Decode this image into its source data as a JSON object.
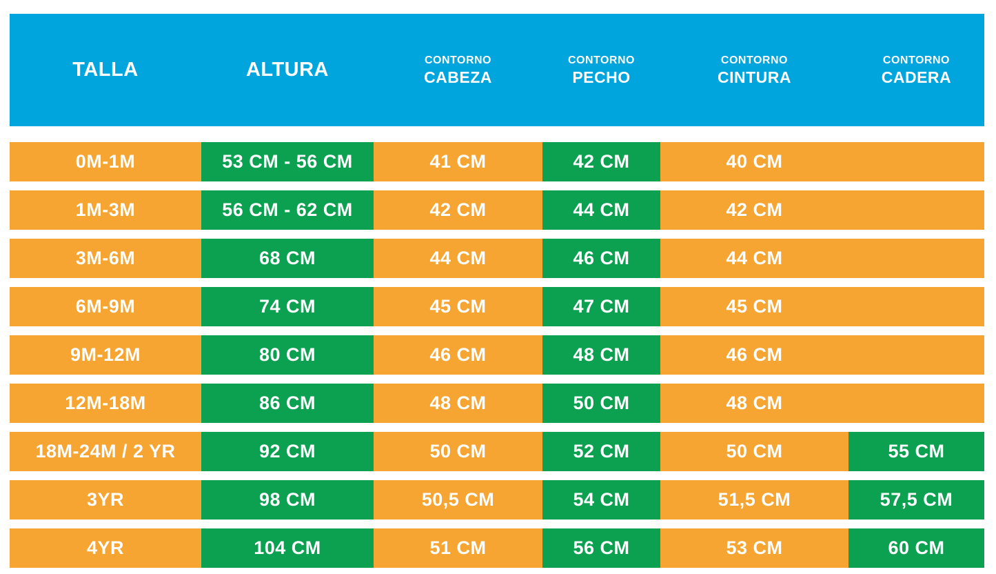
{
  "colors": {
    "header_bg": "#00A5DE",
    "cell_bg": "#F6A432",
    "highlight_bg": "#0CA151",
    "text": "#FFFFFF",
    "page_bg": "#FFFFFF"
  },
  "table": {
    "columns": [
      {
        "top": "",
        "main": "TALLA"
      },
      {
        "top": "",
        "main": "ALTURA"
      },
      {
        "top": "CONTORNO",
        "main": "CABEZA"
      },
      {
        "top": "CONTORNO",
        "main": "PECHO"
      },
      {
        "top": "CONTORNO",
        "main": "CINTURA"
      },
      {
        "top": "CONTORNO",
        "main": "CADERA"
      }
    ],
    "rows": [
      {
        "cells": [
          {
            "text": "0M-1M",
            "green": false
          },
          {
            "text": "53 CM - 56 CM",
            "green": true
          },
          {
            "text": "41 CM",
            "green": false
          },
          {
            "text": "42 CM",
            "green": true
          },
          {
            "text": "40 CM",
            "green": false
          },
          {
            "text": "",
            "green": false
          }
        ]
      },
      {
        "cells": [
          {
            "text": "1M-3M",
            "green": false
          },
          {
            "text": "56 CM - 62 CM",
            "green": true
          },
          {
            "text": "42 CM",
            "green": false
          },
          {
            "text": "44 CM",
            "green": true
          },
          {
            "text": "42 CM",
            "green": false
          },
          {
            "text": "",
            "green": false
          }
        ]
      },
      {
        "cells": [
          {
            "text": "3M-6M",
            "green": false
          },
          {
            "text": "68 CM",
            "green": true
          },
          {
            "text": "44 CM",
            "green": false
          },
          {
            "text": "46 CM",
            "green": true
          },
          {
            "text": "44 CM",
            "green": false
          },
          {
            "text": "",
            "green": false
          }
        ]
      },
      {
        "cells": [
          {
            "text": "6M-9M",
            "green": false
          },
          {
            "text": "74 CM",
            "green": true
          },
          {
            "text": "45 CM",
            "green": false
          },
          {
            "text": "47 CM",
            "green": true
          },
          {
            "text": "45 CM",
            "green": false
          },
          {
            "text": "",
            "green": false
          }
        ]
      },
      {
        "cells": [
          {
            "text": "9M-12M",
            "green": false
          },
          {
            "text": "80 CM",
            "green": true
          },
          {
            "text": "46 CM",
            "green": false
          },
          {
            "text": "48 CM",
            "green": true
          },
          {
            "text": "46 CM",
            "green": false
          },
          {
            "text": "",
            "green": false
          }
        ]
      },
      {
        "cells": [
          {
            "text": "12M-18M",
            "green": false
          },
          {
            "text": "86 CM",
            "green": true
          },
          {
            "text": "48 CM",
            "green": false
          },
          {
            "text": "50 CM",
            "green": true
          },
          {
            "text": "48 CM",
            "green": false
          },
          {
            "text": "",
            "green": false
          }
        ]
      },
      {
        "cells": [
          {
            "text": "18M-24M / 2 YR",
            "green": false
          },
          {
            "text": "92 CM",
            "green": true
          },
          {
            "text": "50 CM",
            "green": false
          },
          {
            "text": "52 CM",
            "green": true
          },
          {
            "text": "50 CM",
            "green": false
          },
          {
            "text": "55 CM",
            "green": true
          }
        ]
      },
      {
        "cells": [
          {
            "text": "3YR",
            "green": false
          },
          {
            "text": "98 CM",
            "green": true
          },
          {
            "text": "50,5 CM",
            "green": false
          },
          {
            "text": "54 CM",
            "green": true
          },
          {
            "text": "51,5 CM",
            "green": false
          },
          {
            "text": "57,5 CM",
            "green": true
          }
        ]
      },
      {
        "cells": [
          {
            "text": "4YR",
            "green": false
          },
          {
            "text": "104 CM",
            "green": true
          },
          {
            "text": "51 CM",
            "green": false
          },
          {
            "text": "56 CM",
            "green": true
          },
          {
            "text": "53 CM",
            "green": false
          },
          {
            "text": "60 CM",
            "green": true
          }
        ]
      }
    ]
  },
  "chart_data": {
    "type": "table",
    "title": "",
    "columns": [
      "TALLA",
      "ALTURA",
      "CONTORNO CABEZA",
      "CONTORNO PECHO",
      "CONTORNO CINTURA",
      "CONTORNO CADERA"
    ],
    "rows": [
      [
        "0M-1M",
        "53 CM - 56 CM",
        "41 CM",
        "42 CM",
        "40 CM",
        ""
      ],
      [
        "1M-3M",
        "56 CM - 62 CM",
        "42 CM",
        "44 CM",
        "42 CM",
        ""
      ],
      [
        "3M-6M",
        "68 CM",
        "44 CM",
        "46 CM",
        "44 CM",
        ""
      ],
      [
        "6M-9M",
        "74 CM",
        "45 CM",
        "47 CM",
        "45 CM",
        ""
      ],
      [
        "9M-12M",
        "80 CM",
        "46 CM",
        "48 CM",
        "46 CM",
        ""
      ],
      [
        "12M-18M",
        "86 CM",
        "48 CM",
        "50 CM",
        "48 CM",
        ""
      ],
      [
        "18M-24M / 2 YR",
        "92 CM",
        "50 CM",
        "52 CM",
        "50 CM",
        "55 CM"
      ],
      [
        "3YR",
        "98 CM",
        "50,5 CM",
        "54 CM",
        "51,5 CM",
        "57,5 CM"
      ],
      [
        "4YR",
        "104 CM",
        "51 CM",
        "56 CM",
        "53 CM",
        "60 CM"
      ]
    ],
    "highlight_note": "ALTURA and CONTORNO PECHO cells are green in all rows; CONTORNO CADERA cells are green in last 3 rows; all other cells orange",
    "legend_position": "none",
    "grid": false
  }
}
